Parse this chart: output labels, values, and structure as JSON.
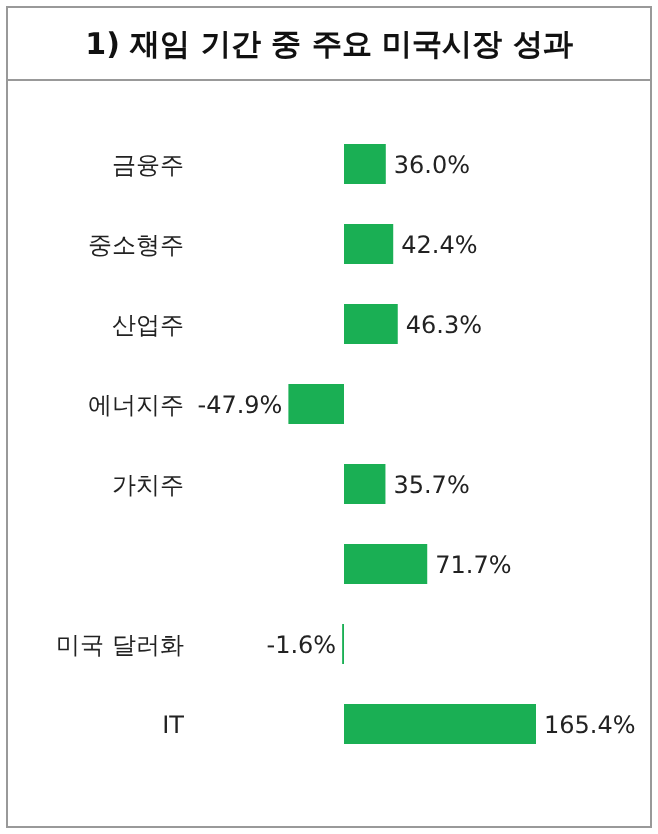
{
  "chart_data": {
    "type": "bar",
    "orientation": "horizontal",
    "title": "1) 재임 기간 중 주요 미국시장 성과",
    "color": "#1aaf54",
    "categories": [
      "금융주",
      "중소형주",
      "산업주",
      "에너지주",
      "가치주",
      null,
      "미국 달러화",
      "IT"
    ],
    "values": [
      36.0,
      42.4,
      46.3,
      -47.9,
      35.7,
      71.7,
      -1.6,
      165.4
    ],
    "value_labels": [
      "36.0%",
      "42.4%",
      "46.3%",
      "-47.9%",
      "35.7%",
      "71.7%",
      "-1.6%",
      "165.4%"
    ]
  }
}
